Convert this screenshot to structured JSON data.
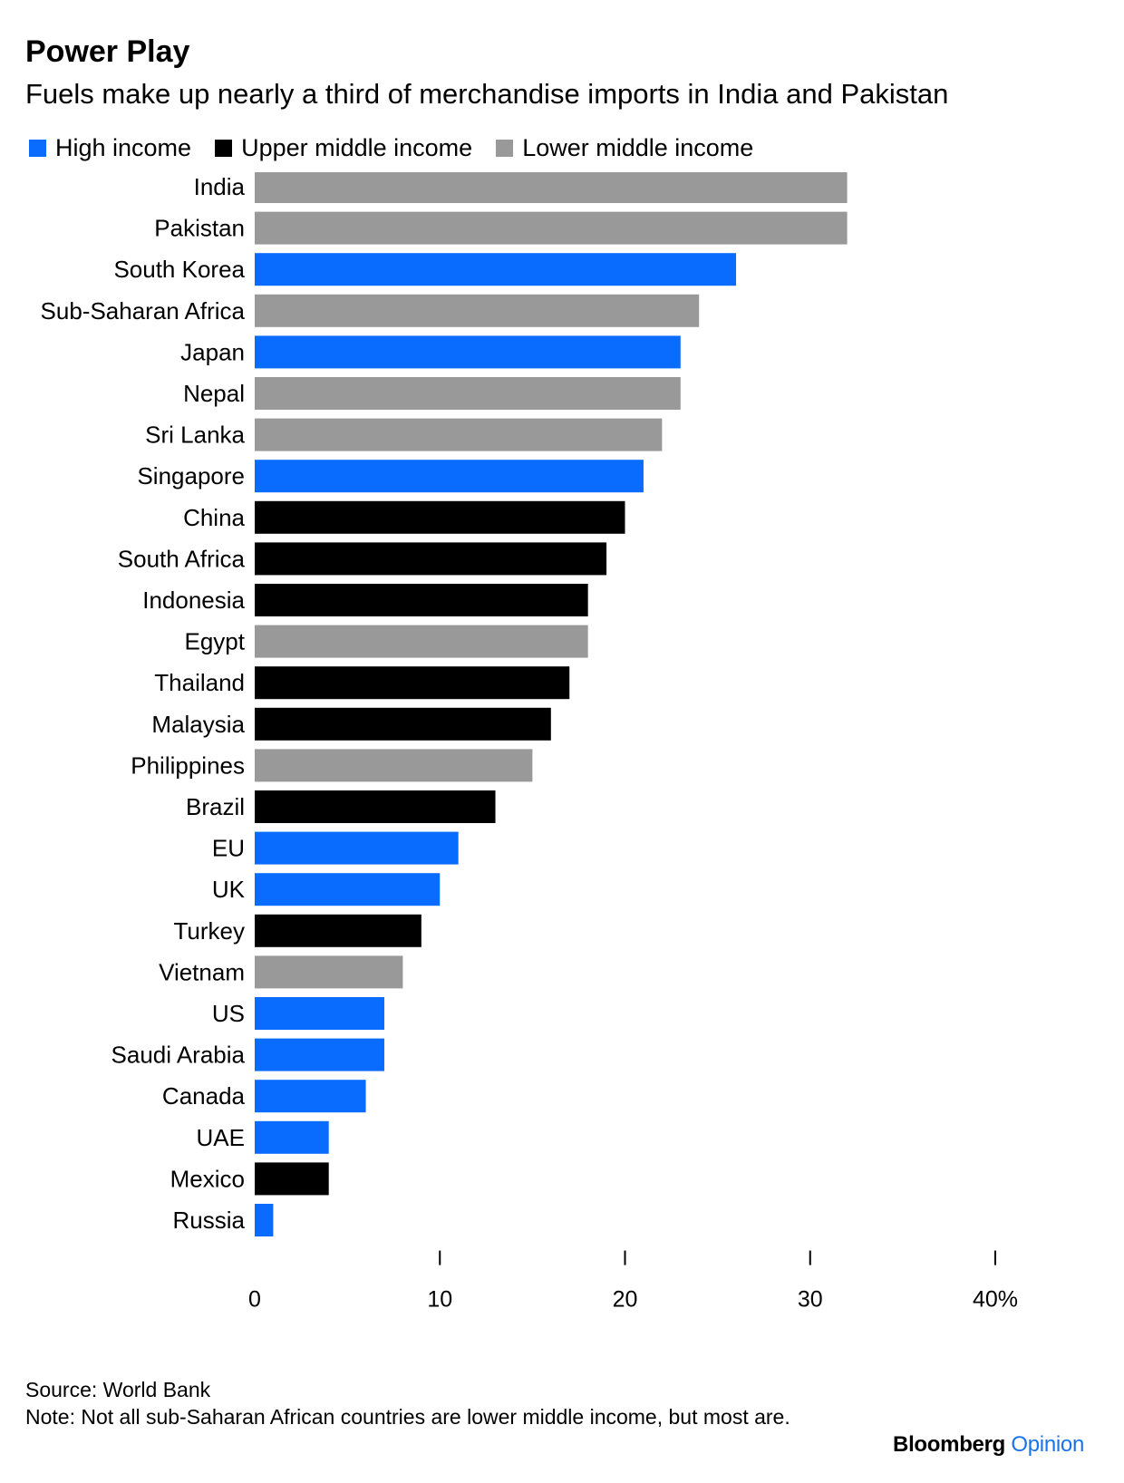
{
  "title": "Power Play",
  "subtitle": "Fuels make up nearly a third of merchandise imports in India and Pakistan",
  "legend": [
    {
      "label": "High income",
      "color": "#0a6cff"
    },
    {
      "label": "Upper middle income",
      "color": "#000000"
    },
    {
      "label": "Lower middle income",
      "color": "#999999"
    }
  ],
  "chart_data": {
    "type": "bar",
    "orientation": "horizontal",
    "categories": [
      "India",
      "Pakistan",
      "South Korea",
      "Sub-Saharan Africa",
      "Japan",
      "Nepal",
      "Sri Lanka",
      "Singapore",
      "China",
      "South Africa",
      "Indonesia",
      "Egypt",
      "Thailand",
      "Malaysia",
      "Philippines",
      "Brazil",
      "EU",
      "UK",
      "Turkey",
      "Vietnam",
      "US",
      "Saudi Arabia",
      "Canada",
      "UAE",
      "Mexico",
      "Russia"
    ],
    "values": [
      32,
      32,
      26,
      24,
      23,
      23,
      22,
      21,
      20,
      19,
      18,
      18,
      17,
      16,
      15,
      13,
      11,
      10,
      9,
      8,
      7,
      7,
      6,
      4,
      4,
      1
    ],
    "groups": [
      "Lower middle income",
      "Lower middle income",
      "High income",
      "Lower middle income",
      "High income",
      "Lower middle income",
      "Lower middle income",
      "High income",
      "Upper middle income",
      "Upper middle income",
      "Upper middle income",
      "Lower middle income",
      "Upper middle income",
      "Upper middle income",
      "Lower middle income",
      "Upper middle income",
      "High income",
      "High income",
      "Upper middle income",
      "Lower middle income",
      "High income",
      "High income",
      "High income",
      "High income",
      "Upper middle income",
      "High income"
    ],
    "xlim": [
      0,
      40
    ],
    "xticks": [
      0,
      10,
      20,
      30,
      40
    ],
    "xtick_labels": [
      "0",
      "10",
      "20",
      "30",
      "40%"
    ],
    "legend_position": "top-left",
    "grid": false
  },
  "footer": {
    "source": "Source: World Bank",
    "note": "Note: Not all sub-Saharan African countries are lower middle income, but most are."
  },
  "brand": {
    "name": "Bloomberg",
    "suffix": "Opinion"
  }
}
